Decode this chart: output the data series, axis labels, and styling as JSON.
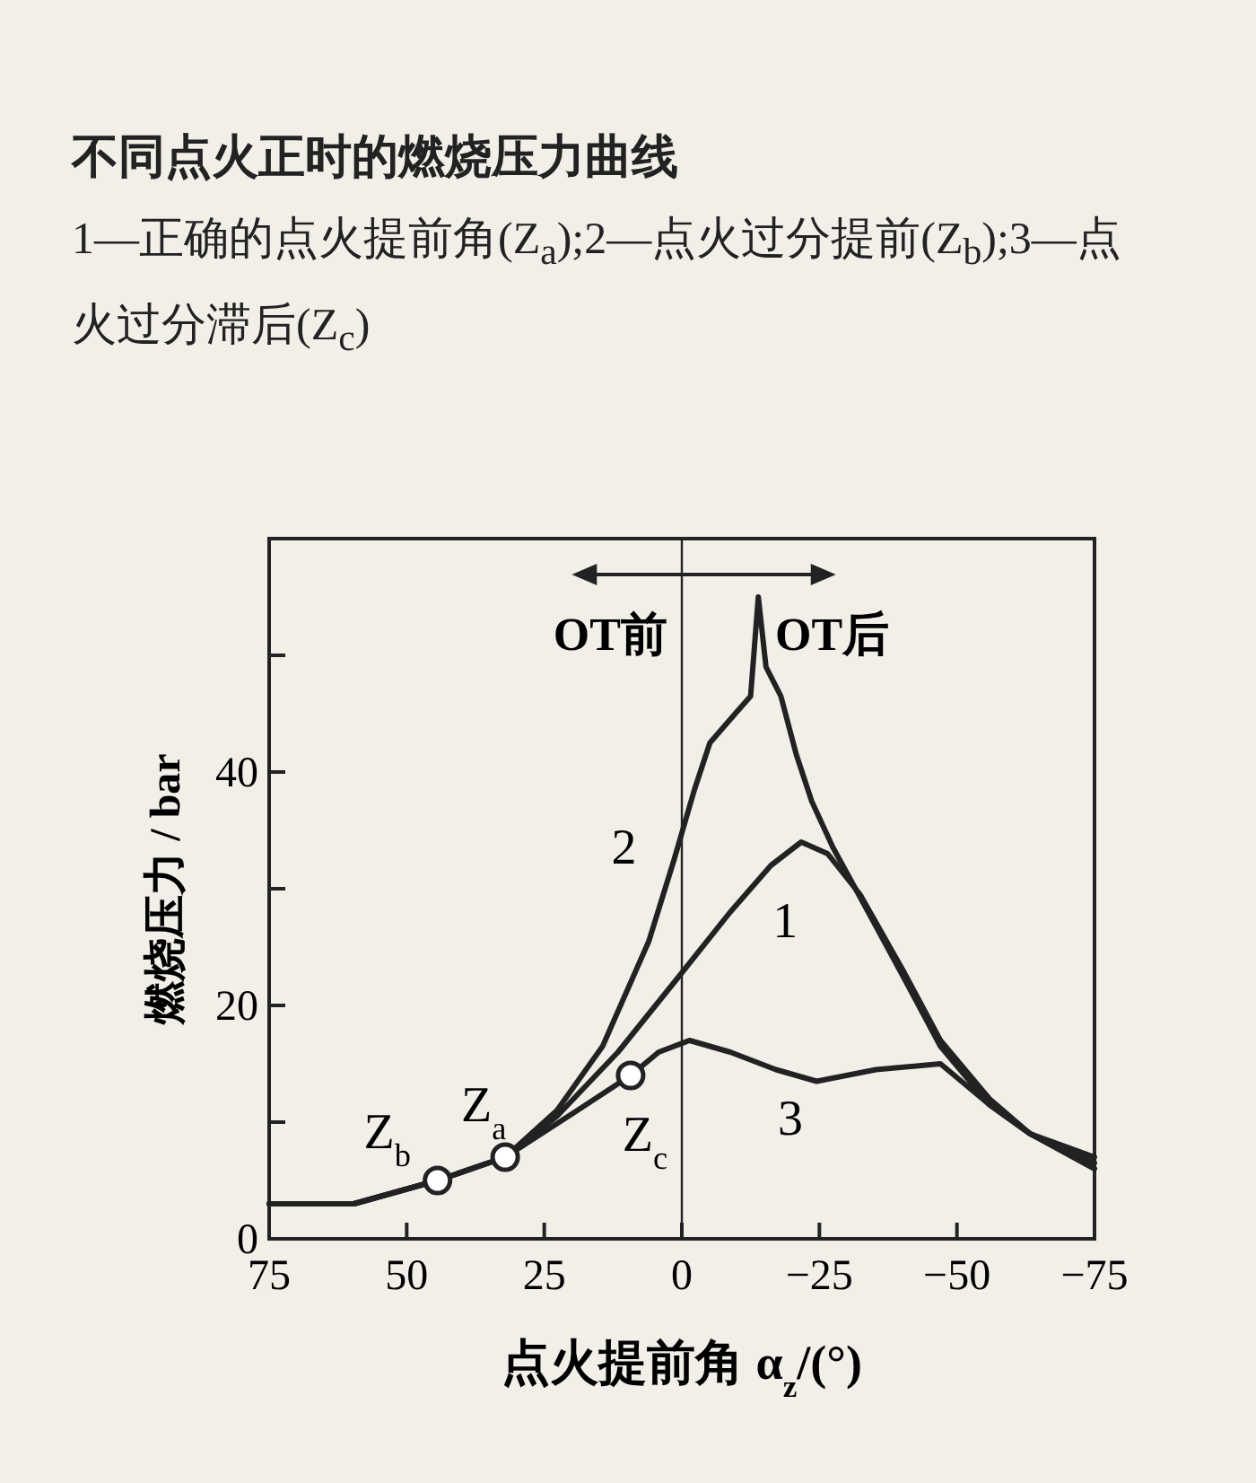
{
  "chart_data": {
    "type": "line",
    "title": "不同点火正时的燃烧压力曲线",
    "subtitle": "1—正确的点火提前角(Z$_{a}$);2—点火过分提前(Z$_{b}$);3—点火过分滞后(Z$_{c}$)",
    "xlabel": "点火提前角 α$_{z}$/(°)",
    "ylabel": "燃烧压力 / bar",
    "xlim": [
      75,
      -75
    ],
    "ylim": [
      0,
      60
    ],
    "xticks": [
      75,
      50,
      25,
      0,
      {
        "value": -25,
        "label": "−25"
      },
      {
        "value": -50,
        "label": "−50"
      },
      {
        "value": -75,
        "label": "−75"
      }
    ],
    "yticks": [
      0,
      {
        "value": 10,
        "label": null
      },
      20,
      {
        "value": 30,
        "label": null
      },
      40,
      {
        "value": 50,
        "label": null
      }
    ],
    "line_style": "solid",
    "series": [
      {
        "color": "#222222",
        "x": [
          75,
          59.6,
          44.4,
          32.1,
          22.7,
          11.6,
          0.5,
          -8.8,
          -16.2,
          -21.7,
          -26.5,
          -32.4,
          -40.2,
          -47,
          -55.9,
          -63.3,
          -75
        ],
        "values": [
          3,
          3,
          5,
          7,
          10.5,
          16,
          22.5,
          28,
          32,
          34,
          33,
          29.5,
          23,
          17,
          12,
          9,
          7
        ]
      },
      {
        "color": "#222222",
        "x": [
          75,
          59.6,
          44.4,
          32.1,
          22.7,
          14.4,
          6,
          1.4,
          -2.3,
          -5.1,
          -9.7,
          -12.5,
          -13.9,
          -15.3,
          -18,
          -20.8,
          -23.6,
          -27.5,
          -33.3,
          -40.2,
          -47,
          -55.9,
          -63.3,
          -75
        ],
        "values": [
          3,
          3,
          5,
          7,
          11,
          16.5,
          25.5,
          32.5,
          38.5,
          42.5,
          45,
          46.5,
          55,
          49,
          46.5,
          41.5,
          37.5,
          33.5,
          28.5,
          22.5,
          16.5,
          11.5,
          9,
          6
        ]
      },
      {
        "color": "#222222",
        "x": [
          75,
          59.6,
          44.4,
          32.1,
          19,
          9.3,
          4.2,
          -1.4,
          -8.8,
          -17.1,
          -24.5,
          -35.3,
          -47,
          -55.9,
          -63.3,
          -75
        ],
        "values": [
          3,
          3,
          5,
          7,
          11,
          14,
          16,
          17,
          16,
          14.5,
          13.5,
          14.5,
          15,
          11.5,
          9,
          6.5
        ]
      },
      {
        "type": "scatter",
        "marker": "circle",
        "color": "#222222",
        "x": [
          44.4,
          32.1,
          9.3
        ],
        "values": [
          5,
          7,
          14
        ]
      }
    ],
    "ref_lines": [
      {
        "axis": "x",
        "value": 0,
        "color": "#222222"
      }
    ],
    "annotations": [
      "OT前",
      "OT后",
      {
        "text": "2",
        "x": 1.4,
        "y": 32.5
      },
      {
        "text": "1",
        "x": -16.2,
        "y": 32
      },
      {
        "text": "3",
        "x": -17.1,
        "y": 14.5
      },
      {
        "text": "Z$_{b}$",
        "x": 44.4,
        "y": 5
      },
      {
        "text": "Z$_{a}$",
        "x": 32.1,
        "y": 7
      },
      {
        "text": "Z$_{c}$",
        "x": 9.3,
        "y": 14
      }
    ]
  }
}
